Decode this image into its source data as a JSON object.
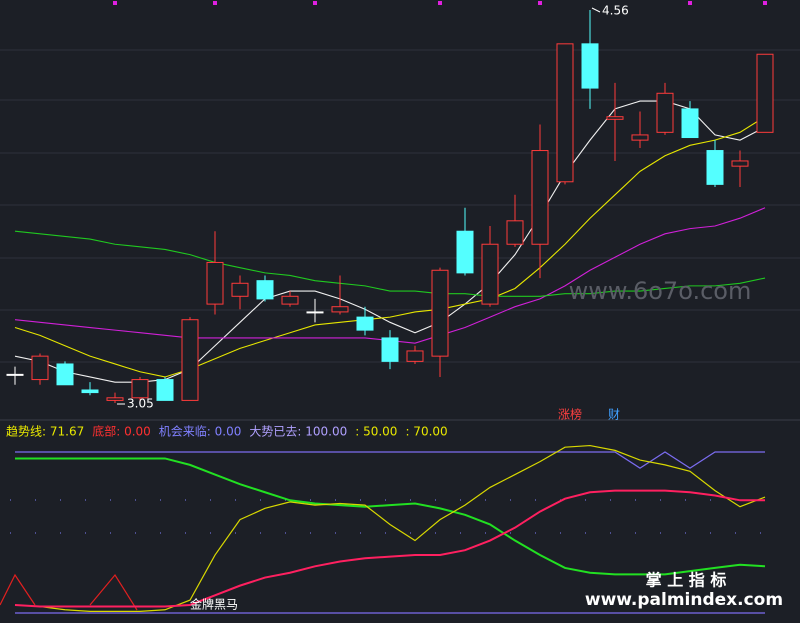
{
  "chart_data": [
    {
      "type": "candlestick",
      "open": [
        3.16,
        3.14,
        3.2,
        3.1,
        3.06,
        3.07,
        3.14,
        3.06,
        3.43,
        3.46,
        3.52,
        3.43,
        3.4,
        3.4,
        3.38,
        3.3,
        3.21,
        3.23,
        3.71,
        3.43,
        3.66,
        3.66,
        3.9,
        4.43,
        4.14,
        4.06,
        4.09,
        4.18,
        4.02,
        3.96,
        4.09
      ],
      "close": [
        3.16,
        3.23,
        3.12,
        3.09,
        3.07,
        3.14,
        3.06,
        3.37,
        3.59,
        3.51,
        3.45,
        3.46,
        3.4,
        3.42,
        3.33,
        3.21,
        3.25,
        3.56,
        3.55,
        3.66,
        3.75,
        4.02,
        4.43,
        4.26,
        4.15,
        4.08,
        4.24,
        4.07,
        3.89,
        3.98,
        4.39
      ],
      "high": [
        3.19,
        3.24,
        3.21,
        3.13,
        3.09,
        3.15,
        3.15,
        3.38,
        3.71,
        3.54,
        3.54,
        3.48,
        3.45,
        3.54,
        3.42,
        3.33,
        3.27,
        3.57,
        3.8,
        3.73,
        3.85,
        4.12,
        4.43,
        4.56,
        4.28,
        4.17,
        4.28,
        4.21,
        4.06,
        4.02,
        4.39
      ],
      "low": [
        3.12,
        3.12,
        3.12,
        3.08,
        3.05,
        3.06,
        3.06,
        3.06,
        3.39,
        3.41,
        3.44,
        3.42,
        3.36,
        3.39,
        3.31,
        3.18,
        3.2,
        3.15,
        3.54,
        3.42,
        3.65,
        3.53,
        3.89,
        4.18,
        3.98,
        4.03,
        4.08,
        4.07,
        3.88,
        3.88,
        4.09
      ],
      "up_color": "#ff3b3b",
      "down_color": "#54ffff",
      "flat_color": "#ffffff",
      "series": [
        {
          "color": "#f0f0f0",
          "values": [
            3.23,
            3.21,
            3.17,
            3.15,
            3.13,
            3.13,
            3.14,
            3.18,
            3.27,
            3.36,
            3.45,
            3.48,
            3.48,
            3.45,
            3.41,
            3.36,
            3.32,
            3.36,
            3.43,
            3.51,
            3.62,
            3.77,
            3.93,
            4.06,
            4.18,
            4.21,
            4.21,
            4.18,
            4.08,
            4.06,
            4.11
          ]
        },
        {
          "color": "#e6e600",
          "values": [
            3.34,
            3.31,
            3.27,
            3.23,
            3.2,
            3.17,
            3.15,
            3.18,
            3.22,
            3.26,
            3.29,
            3.32,
            3.35,
            3.36,
            3.37,
            3.38,
            3.4,
            3.41,
            3.43,
            3.45,
            3.49,
            3.57,
            3.66,
            3.76,
            3.85,
            3.94,
            4.0,
            4.04,
            4.06,
            4.09,
            4.15
          ]
        },
        {
          "color": "#d020d8",
          "values": [
            3.37,
            3.36,
            3.35,
            3.34,
            3.33,
            3.32,
            3.31,
            3.3,
            3.3,
            3.3,
            3.3,
            3.3,
            3.3,
            3.3,
            3.3,
            3.29,
            3.28,
            3.31,
            3.34,
            3.38,
            3.42,
            3.45,
            3.5,
            3.56,
            3.61,
            3.66,
            3.7,
            3.72,
            3.73,
            3.76,
            3.8
          ]
        },
        {
          "color": "#20c820",
          "values": [
            3.71,
            3.7,
            3.69,
            3.68,
            3.66,
            3.65,
            3.64,
            3.62,
            3.59,
            3.57,
            3.55,
            3.54,
            3.52,
            3.51,
            3.5,
            3.48,
            3.48,
            3.47,
            3.47,
            3.46,
            3.46,
            3.46,
            3.47,
            3.47,
            3.48,
            3.48,
            3.49,
            3.5,
            3.5,
            3.51,
            3.53
          ]
        }
      ],
      "high_label": "4.56",
      "low_label": "3.05",
      "badges": [
        {
          "text": "涨榜",
          "color": "#ff4040"
        },
        {
          "text": "财",
          "color": "#40a0ff"
        }
      ]
    },
    {
      "type": "line",
      "header": [
        {
          "text": "趋势线: 71.67",
          "color": "#e8e800"
        },
        {
          "text": "底部: 0.00",
          "color": "#ff3030"
        },
        {
          "text": "机会来临: 0.00",
          "color": "#8080ff"
        },
        {
          "text": "大势已去: 100.00",
          "color": "#b0a0ff"
        },
        {
          "text": ": 50.00",
          "color": "#e8e800"
        },
        {
          "text": ": 70.00",
          "color": "#e8e800"
        }
      ],
      "ylim": [
        0,
        100
      ],
      "series": [
        {
          "color": "#7b6cf0",
          "values": [
            100,
            100,
            100,
            100,
            100,
            100,
            100,
            100,
            100,
            100,
            100,
            100,
            100,
            100,
            100,
            100,
            100,
            100,
            100,
            100,
            100,
            100,
            100,
            100,
            100,
            90,
            100,
            90,
            100,
            100,
            100
          ]
        },
        {
          "color": "#7b6cf0",
          "values": [
            0,
            0,
            0,
            0,
            0,
            0,
            0,
            0,
            0,
            0,
            0,
            0,
            0,
            0,
            0,
            0,
            0,
            0,
            0,
            0,
            0,
            0,
            0,
            0,
            0,
            0,
            0,
            0,
            0,
            0,
            0
          ]
        },
        {
          "color": "#22e022",
          "values": [
            96,
            96,
            96,
            96,
            96,
            96,
            96,
            92,
            86,
            80,
            75,
            70,
            68,
            67,
            66,
            67,
            68,
            65,
            61,
            55,
            45,
            36,
            28,
            25,
            24,
            24,
            24,
            26,
            28,
            30,
            29
          ]
        },
        {
          "color": "#d8d800",
          "values": [
            5,
            4,
            2,
            1,
            1,
            1,
            2,
            8,
            36,
            58,
            65,
            69,
            67,
            68,
            67,
            55,
            45,
            58,
            67,
            78,
            86,
            94,
            103,
            104,
            101,
            95,
            92,
            88,
            76,
            66,
            72
          ]
        },
        {
          "color": "#ff2060",
          "values": [
            5,
            4,
            4,
            4,
            4,
            4,
            4,
            5,
            11,
            17,
            22,
            25,
            29,
            32,
            34,
            35,
            36,
            36,
            39,
            45,
            53,
            63,
            71,
            75,
            76,
            76,
            76,
            75,
            73,
            70,
            70
          ]
        }
      ],
      "signal_label": "金牌黑马"
    }
  ],
  "watermarks": [
    "www.6o7o.com",
    "掌 上 指 标",
    "www.palmindex.com"
  ]
}
